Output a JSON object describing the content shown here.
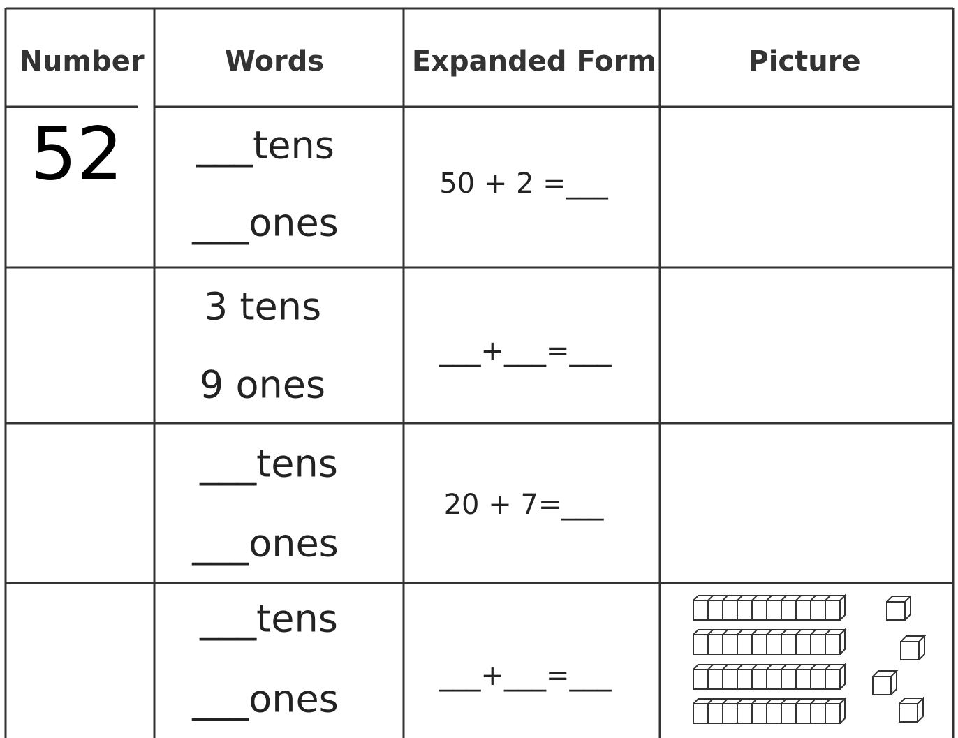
{
  "table": {
    "header": [
      "Number",
      "Words",
      "Expanded Form",
      "Picture"
    ],
    "rows": [
      {
        "number": "52",
        "words": [
          "___tens",
          "___ones"
        ],
        "expanded": "50 + 2 =___"
      },
      {
        "words": [
          "3 tens",
          "9 ones"
        ],
        "expanded": "___+___=___"
      },
      {
        "words": [
          "___tens",
          "___ones"
        ],
        "expanded": "20 + 7=___"
      },
      {
        "words": [
          "___tens",
          "___ones"
        ],
        "expanded": "___+___=___"
      }
    ]
  }
}
